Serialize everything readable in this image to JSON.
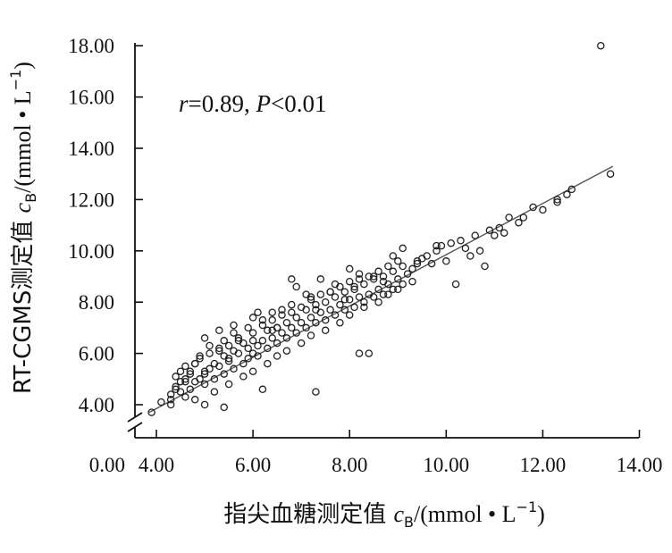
{
  "chart_data": {
    "type": "scatter",
    "title": "",
    "xlabel": "指尖血糖测定值 cB/(mmol·L−1)",
    "xlabel_parts": {
      "main": "指尖血糖测定值 ",
      "c": "c",
      "sub": "B",
      "unit": "/(mmol • L",
      "exp": "−1",
      "close": ")"
    },
    "ylabel": "RT-CGMS测定值 cB/(mmol·L−1)",
    "ylabel_parts": {
      "main": "RT-CGMS测定值 ",
      "c": "c",
      "sub": "B",
      "unit": "/(mmol • L",
      "exp": "−1",
      "close": ")"
    },
    "annotation": {
      "r": "r",
      "r_text": "=0.89, ",
      "p": "P",
      "p_text": "<0.01"
    },
    "xlim": [
      3.8,
      14.0
    ],
    "ylim": [
      3.3,
      18.5
    ],
    "x_ticks": [
      4,
      6,
      8,
      10,
      12,
      14
    ],
    "x_tick_labels": [
      "4.00",
      "6.00",
      "8.00",
      "10.00",
      "12.00",
      "14.00"
    ],
    "y_ticks": [
      4,
      6,
      8,
      10,
      12,
      14,
      16,
      18
    ],
    "y_tick_labels": [
      "4.00",
      "6.00",
      "8.00",
      "10.00",
      "12.00",
      "14.00",
      "16.00",
      "18.00"
    ],
    "origin_label": "0.00",
    "axis_break": true,
    "grid": false,
    "marker": "open-circle",
    "fit_line": {
      "x": [
        3.85,
        13.45
      ],
      "y": [
        3.7,
        13.3
      ]
    },
    "series": [
      {
        "x": [
          3.9,
          4.1,
          4.3,
          4.3,
          4.4,
          4.4,
          4.5,
          4.5,
          4.6,
          4.6,
          4.7,
          4.7,
          4.8,
          4.8,
          4.9,
          4.9,
          5.0,
          5.0,
          5.1,
          5.1,
          5.2,
          5.2,
          5.3,
          5.3,
          5.4,
          5.4,
          5.5,
          5.5,
          5.6,
          5.6,
          5.7,
          5.7,
          5.8,
          5.8,
          5.9,
          5.9,
          6.0,
          6.0,
          6.1,
          6.1,
          6.2,
          6.2,
          6.3,
          6.3,
          6.4,
          6.4,
          6.5,
          6.5,
          6.6,
          6.6,
          6.7,
          6.7,
          6.8,
          6.8,
          6.9,
          6.9,
          7.0,
          7.0,
          7.1,
          7.1,
          7.2,
          7.2,
          7.3,
          7.3,
          7.4,
          7.4,
          7.5,
          7.5,
          7.6,
          7.6,
          7.7,
          7.7,
          7.8,
          7.8,
          7.9,
          7.9,
          8.0,
          8.0,
          8.1,
          8.1,
          8.2,
          8.2,
          8.3,
          8.3,
          8.4,
          8.4,
          8.5,
          8.5,
          8.6,
          8.6,
          8.7,
          8.7,
          8.8,
          8.8,
          8.9,
          8.9,
          9.0,
          9.0,
          9.1,
          9.1,
          9.2,
          9.3,
          9.4,
          9.5,
          9.6,
          9.7,
          9.8,
          9.9,
          10.0,
          10.1,
          10.2,
          10.3,
          10.4,
          10.5,
          10.6,
          10.7,
          10.8,
          10.9,
          11.0,
          11.1,
          11.2,
          11.3,
          11.5,
          11.6,
          11.8,
          12.0,
          12.3,
          12.3,
          12.5,
          12.6,
          13.2,
          13.4,
          4.6,
          4.8,
          5.0,
          5.2,
          5.5,
          5.8,
          6.0,
          6.3,
          6.5,
          6.7,
          7.0,
          7.2,
          7.5,
          7.8,
          8.0,
          8.3,
          8.6,
          8.8,
          9.0,
          9.3,
          5.0,
          5.3,
          5.6,
          6.0,
          6.4,
          6.8,
          7.2,
          7.6,
          8.1,
          8.5,
          4.5,
          4.9,
          5.4,
          5.9,
          6.2,
          6.6,
          7.1,
          7.7,
          8.2,
          8.9,
          4.3,
          4.7,
          5.1,
          5.6,
          6.1,
          6.9,
          7.4,
          8.0,
          8.4,
          9.1,
          4.4,
          4.8,
          5.3,
          5.7,
          6.5,
          7.3,
          7.9,
          8.7,
          9.4,
          9.8,
          4.6,
          5.0,
          5.5,
          6.0,
          6.4,
          6.8,
          7.3,
          8.2,
          6.2,
          5.4
        ],
        "y": [
          3.7,
          4.1,
          4.0,
          4.2,
          4.7,
          5.1,
          4.5,
          4.9,
          5.0,
          5.5,
          4.6,
          5.3,
          4.9,
          5.6,
          5.0,
          5.8,
          5.2,
          4.8,
          5.4,
          6.0,
          5.0,
          5.6,
          5.5,
          6.2,
          5.2,
          5.9,
          5.7,
          6.3,
          5.4,
          6.1,
          6.0,
          6.6,
          5.6,
          6.4,
          6.2,
          5.8,
          6.0,
          6.8,
          6.3,
          5.9,
          6.5,
          7.1,
          6.2,
          6.9,
          6.6,
          7.3,
          6.4,
          7.0,
          6.8,
          7.5,
          6.6,
          7.2,
          7.0,
          7.6,
          6.8,
          7.4,
          7.2,
          7.8,
          7.0,
          7.7,
          7.4,
          8.1,
          7.2,
          7.9,
          7.6,
          8.3,
          7.3,
          8.0,
          7.7,
          8.4,
          7.5,
          8.2,
          7.9,
          8.6,
          7.7,
          8.4,
          8.1,
          8.8,
          7.8,
          8.5,
          8.2,
          8.9,
          8.0,
          8.7,
          8.3,
          9.0,
          8.2,
          8.9,
          8.5,
          9.2,
          8.3,
          9.0,
          8.7,
          9.4,
          8.5,
          9.2,
          8.9,
          9.6,
          8.7,
          9.4,
          9.1,
          9.3,
          9.5,
          9.7,
          9.8,
          9.5,
          10.0,
          10.2,
          9.6,
          10.3,
          8.7,
          10.4,
          10.1,
          9.8,
          10.6,
          10.0,
          9.4,
          10.8,
          10.6,
          10.9,
          10.7,
          11.3,
          11.1,
          11.3,
          11.7,
          11.6,
          11.9,
          12.0,
          12.2,
          12.4,
          18.0,
          13.0,
          4.3,
          4.2,
          4.0,
          4.5,
          4.8,
          5.1,
          5.3,
          5.6,
          5.9,
          6.1,
          6.4,
          6.7,
          6.9,
          7.2,
          7.5,
          7.8,
          8.0,
          8.3,
          8.5,
          8.8,
          6.6,
          6.9,
          7.1,
          7.4,
          7.6,
          7.9,
          8.2,
          8.4,
          8.6,
          9.0,
          5.3,
          5.9,
          6.5,
          7.0,
          7.3,
          7.7,
          8.3,
          8.7,
          9.1,
          9.8,
          4.4,
          5.2,
          6.3,
          6.8,
          7.6,
          8.6,
          8.9,
          9.3,
          6.0,
          10.1,
          4.6,
          5.6,
          6.1,
          6.5,
          7.0,
          7.7,
          8.1,
          8.8,
          9.6,
          10.2,
          4.9,
          5.3,
          5.8,
          6.5,
          6.9,
          8.9,
          4.5,
          6.0,
          4.6,
          3.9
        ]
      }
    ]
  }
}
